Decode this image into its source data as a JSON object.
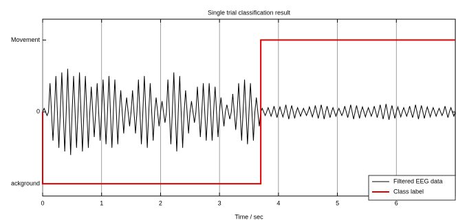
{
  "chart_data": {
    "type": "line",
    "title": "Single trial classification result",
    "xlabel": "Time / sec",
    "xlim": [
      0,
      7
    ],
    "xticks": [
      0,
      1,
      2,
      3,
      4,
      5,
      6
    ],
    "ylim": [
      -1.17,
      1.29
    ],
    "yticks": [
      {
        "value": -1,
        "label": "ackground"
      },
      0,
      {
        "value": 1,
        "label": "Movement"
      }
    ],
    "grid": true,
    "legend": "lower right",
    "series": [
      {
        "name": "Filtered EEG data",
        "color": "#000000",
        "x": [
          0,
          0.025,
          0.05,
          0.075,
          0.1,
          0.125,
          0.15,
          0.175,
          0.2,
          0.225,
          0.25,
          0.275,
          0.3,
          0.325,
          0.35,
          0.375,
          0.4,
          0.425,
          0.45,
          0.475,
          0.5,
          0.525,
          0.55,
          0.575,
          0.6,
          0.625,
          0.65,
          0.675,
          0.7,
          0.725,
          0.75,
          0.775,
          0.8,
          0.825,
          0.85,
          0.875,
          0.9,
          0.925,
          0.95,
          0.975,
          1,
          1.025,
          1.05,
          1.075,
          1.1,
          1.125,
          1.15,
          1.175,
          1.2,
          1.225,
          1.25,
          1.275,
          1.3,
          1.325,
          1.35,
          1.375,
          1.4,
          1.425,
          1.45,
          1.475,
          1.5,
          1.525,
          1.55,
          1.575,
          1.6,
          1.625,
          1.65,
          1.675,
          1.7,
          1.725,
          1.75,
          1.775,
          1.8,
          1.825,
          1.85,
          1.875,
          1.9,
          1.925,
          1.95,
          1.975,
          2,
          2.025,
          2.05,
          2.075,
          2.1,
          2.125,
          2.15,
          2.175,
          2.2,
          2.225,
          2.25,
          2.275,
          2.3,
          2.325,
          2.35,
          2.375,
          2.4,
          2.425,
          2.45,
          2.475,
          2.5,
          2.525,
          2.55,
          2.575,
          2.6,
          2.625,
          2.65,
          2.675,
          2.7,
          2.725,
          2.75,
          2.775,
          2.8,
          2.825,
          2.85,
          2.875,
          2.9,
          2.925,
          2.95,
          2.975,
          3,
          3.025,
          3.05,
          3.075,
          3.1,
          3.125,
          3.15,
          3.175,
          3.2,
          3.225,
          3.25,
          3.275,
          3.3,
          3.325,
          3.35,
          3.375,
          3.4,
          3.425,
          3.45,
          3.475,
          3.5,
          3.525,
          3.55,
          3.575,
          3.6,
          3.625,
          3.65,
          3.675,
          3.7,
          3.725,
          3.75,
          3.775,
          3.8,
          3.825,
          3.85,
          3.875,
          3.9,
          3.925,
          3.95,
          3.975,
          4,
          4.025,
          4.05,
          4.075,
          4.1,
          4.125,
          4.15,
          4.175,
          4.2,
          4.225,
          4.25,
          4.275,
          4.3,
          4.325,
          4.35,
          4.375,
          4.4,
          4.425,
          4.45,
          4.475,
          4.5,
          4.525,
          4.55,
          4.575,
          4.6,
          4.625,
          4.65,
          4.675,
          4.7,
          4.725,
          4.75,
          4.775,
          4.8,
          4.825,
          4.85,
          4.875,
          4.9,
          4.925,
          4.95,
          4.975,
          5,
          5.025,
          5.05,
          5.075,
          5.1,
          5.125,
          5.15,
          5.175,
          5.2,
          5.225,
          5.25,
          5.275,
          5.3,
          5.325,
          5.35,
          5.375,
          5.4,
          5.425,
          5.45,
          5.475,
          5.5,
          5.525,
          5.55,
          5.575,
          5.6,
          5.625,
          5.65,
          5.675,
          5.7,
          5.725,
          5.75,
          5.775,
          5.8,
          5.825,
          5.85,
          5.875,
          5.9,
          5.925,
          5.95,
          5.975,
          6,
          6.025,
          6.05,
          6.075,
          6.1,
          6.125,
          6.15,
          6.175,
          6.2,
          6.225,
          6.25,
          6.275,
          6.3,
          6.325,
          6.35,
          6.375,
          6.4,
          6.425,
          6.45,
          6.475,
          6.5,
          6.525,
          6.55,
          6.575,
          6.6,
          6.625,
          6.65,
          6.675,
          6.7,
          6.725,
          6.75,
          6.775,
          6.8,
          6.825,
          6.85,
          6.875,
          6.9,
          6.925,
          6.95,
          6.975,
          7
        ],
        "values": [
          0,
          0.05,
          0,
          -0.05,
          0,
          0.4,
          0,
          -0.4,
          0,
          0.5,
          0,
          -0.5,
          0,
          0.55,
          0,
          -0.55,
          0,
          0.6,
          0,
          -0.6,
          0,
          0.5,
          0,
          -0.5,
          0,
          0.55,
          0,
          -0.55,
          0,
          0.5,
          0,
          -0.5,
          0,
          0.35,
          0,
          -0.35,
          0,
          0.4,
          0,
          -0.4,
          0,
          0.45,
          0,
          -0.45,
          0,
          0.5,
          0,
          -0.5,
          0,
          0.45,
          0,
          -0.45,
          0,
          0.3,
          0,
          -0.3,
          0,
          0.2,
          0,
          -0.2,
          0,
          0.3,
          0,
          -0.3,
          0,
          0.45,
          0,
          -0.45,
          0,
          0.5,
          0,
          -0.5,
          0,
          0.4,
          0,
          -0.4,
          0,
          0.2,
          0,
          -0.2,
          0,
          0.15,
          0,
          -0.15,
          0,
          0.45,
          0,
          -0.45,
          0,
          0.55,
          0,
          -0.55,
          0,
          0.5,
          0,
          -0.5,
          0,
          0.3,
          0,
          -0.3,
          0,
          0.15,
          0,
          -0.15,
          0,
          0.35,
          0,
          -0.35,
          0,
          0.4,
          0,
          -0.4,
          0,
          0.4,
          0,
          -0.4,
          0,
          0.35,
          0,
          -0.35,
          0,
          0.2,
          0,
          -0.2,
          0,
          0.1,
          0,
          -0.1,
          0,
          0.25,
          0,
          -0.25,
          0,
          0.4,
          0,
          -0.4,
          0,
          0.45,
          0,
          -0.45,
          0,
          0.4,
          0,
          -0.4,
          0,
          0.2,
          0,
          -0.2,
          0,
          0.05,
          0,
          -0.05,
          0,
          0.06,
          0,
          -0.06,
          0,
          0.08,
          0,
          -0.08,
          0,
          0.07,
          0,
          -0.07,
          0,
          0.1,
          0,
          -0.1,
          0,
          0.09,
          0,
          -0.09,
          0,
          0.06,
          0,
          -0.06,
          0,
          0.05,
          0,
          -0.05,
          0,
          0.07,
          0,
          -0.07,
          0,
          0.09,
          0,
          -0.09,
          0,
          0.1,
          0,
          -0.1,
          0,
          0.08,
          0,
          -0.08,
          0,
          0.06,
          0,
          -0.06,
          0,
          0.05,
          0,
          -0.05,
          0,
          0.08,
          0,
          -0.08,
          0,
          0.1,
          0,
          -0.1,
          0,
          0.09,
          0,
          -0.09,
          0,
          0.07,
          0,
          -0.07,
          0,
          0.06,
          0,
          -0.06,
          0,
          0.08,
          0,
          -0.08,
          0,
          0.1,
          0,
          -0.1,
          0,
          0.11,
          0,
          -0.11,
          0,
          0.09,
          0,
          -0.09,
          0,
          0.07,
          0,
          -0.07,
          0,
          0.06,
          0,
          -0.06,
          0,
          0.08,
          0,
          -0.08,
          0,
          0.1,
          0,
          -0.1,
          0,
          0.09,
          0,
          -0.09,
          0,
          0.07,
          0,
          -0.07,
          0,
          0.06,
          0,
          -0.06,
          0,
          0.05,
          0,
          -0.05,
          0,
          0.08,
          0,
          -0.08,
          0,
          0.06,
          0,
          -0.06,
          0
        ]
      },
      {
        "name": "Class label",
        "color": "#e00000",
        "x": [
          0,
          0,
          3.7,
          3.7,
          7
        ],
        "values": [
          0,
          -1,
          -1,
          1,
          1
        ]
      }
    ]
  }
}
